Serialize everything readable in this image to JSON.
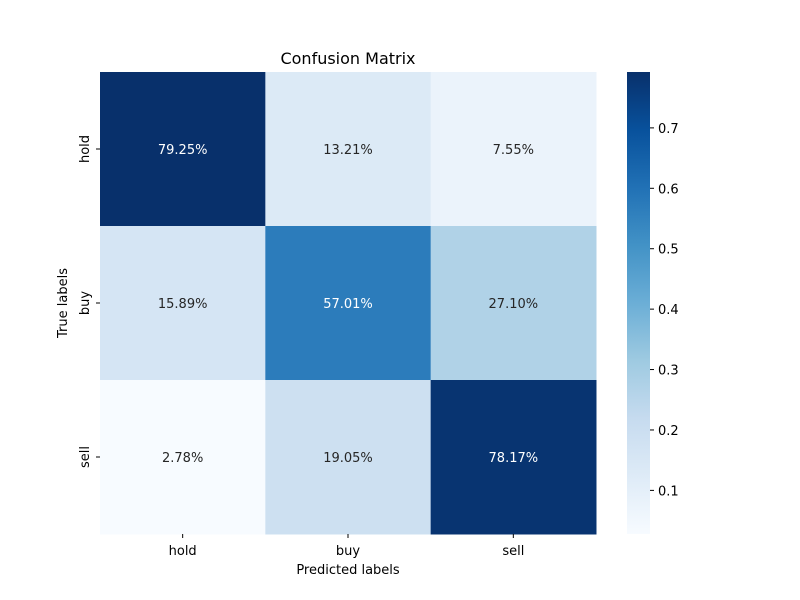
{
  "chart_data": {
    "type": "heatmap",
    "title": "Confusion Matrix",
    "xlabel": "Predicted labels",
    "ylabel": "True labels",
    "x_categories": [
      "hold",
      "buy",
      "sell"
    ],
    "y_categories": [
      "hold",
      "buy",
      "sell"
    ],
    "values": [
      [
        0.7925,
        0.1321,
        0.0755
      ],
      [
        0.1589,
        0.5701,
        0.271
      ],
      [
        0.0278,
        0.1905,
        0.7817
      ]
    ],
    "cell_labels": [
      [
        "79.25%",
        "13.21%",
        "7.55%"
      ],
      [
        "15.89%",
        "57.01%",
        "27.10%"
      ],
      [
        "2.78%",
        "19.05%",
        "78.17%"
      ]
    ],
    "colormap": "Blues",
    "colorbar": {
      "range": [
        0.0278,
        0.7925
      ],
      "ticks": [
        0.1,
        0.2,
        0.3,
        0.4,
        0.5,
        0.6,
        0.7
      ],
      "tick_labels": [
        "0.1",
        "0.2",
        "0.3",
        "0.4",
        "0.5",
        "0.6",
        "0.7"
      ]
    }
  }
}
